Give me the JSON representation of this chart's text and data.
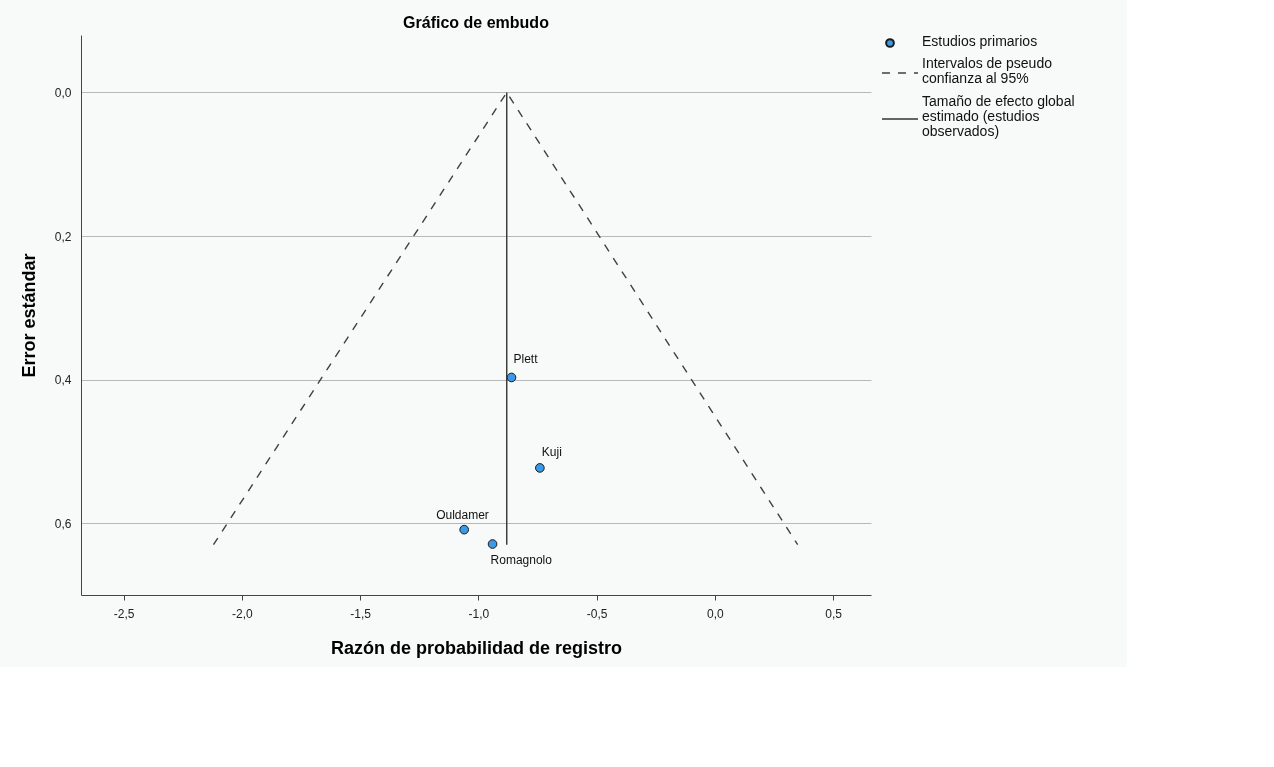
{
  "chart_data": {
    "type": "scatter",
    "title": "Gráfico de embudo",
    "xlabel": "Razón de probabilidad de registro",
    "ylabel": "Error estándar",
    "xlim": [
      -2.68,
      0.66
    ],
    "ylim": [
      0.7,
      -0.08
    ],
    "xticks": [
      {
        "value": -2.5,
        "label": "-2,5"
      },
      {
        "value": -2.0,
        "label": "-2,0"
      },
      {
        "value": -1.5,
        "label": "-1,5"
      },
      {
        "value": -1.0,
        "label": "-1,0"
      },
      {
        "value": -0.5,
        "label": "-0,5"
      },
      {
        "value": 0.0,
        "label": "0,0"
      },
      {
        "value": 0.5,
        "label": "0,5"
      }
    ],
    "yticks": [
      {
        "value": 0.0,
        "label": "0,0"
      },
      {
        "value": 0.2,
        "label": "0,2"
      },
      {
        "value": 0.4,
        "label": "0,4"
      },
      {
        "value": 0.6,
        "label": "0,6"
      }
    ],
    "grid": "y",
    "legend": "right",
    "series": [
      {
        "name": "Estudios primarios",
        "type": "scatter",
        "marker": "circle",
        "color": "#3a9ae8",
        "x": [
          -0.86,
          -0.74,
          -1.06,
          -0.94
        ],
        "values": [
          0.397,
          0.523,
          0.609,
          0.629
        ]
      },
      {
        "name": "Intervalos de pseudo confianza al 95%",
        "type": "line",
        "line_style": "dashed",
        "color": "#404040",
        "x": [
          -2.12,
          -0.88,
          0.35
        ],
        "values": [
          0.63,
          0.0,
          0.63
        ]
      },
      {
        "name": "Tamaño de efecto global estimado (estudios observados)",
        "type": "line",
        "line_style": "solid",
        "color": "#333333",
        "x": [
          -0.88,
          -0.88
        ],
        "values": [
          0.0,
          0.63
        ]
      }
    ],
    "annotations": [
      {
        "text": "Plett",
        "x": -0.86,
        "y": 0.397
      },
      {
        "text": "Kuji",
        "x": -0.74,
        "y": 0.523
      },
      {
        "text": "Ouldamer",
        "x": -1.06,
        "y": 0.609
      },
      {
        "text": "Romagnolo",
        "x": -0.94,
        "y": 0.629
      }
    ]
  }
}
